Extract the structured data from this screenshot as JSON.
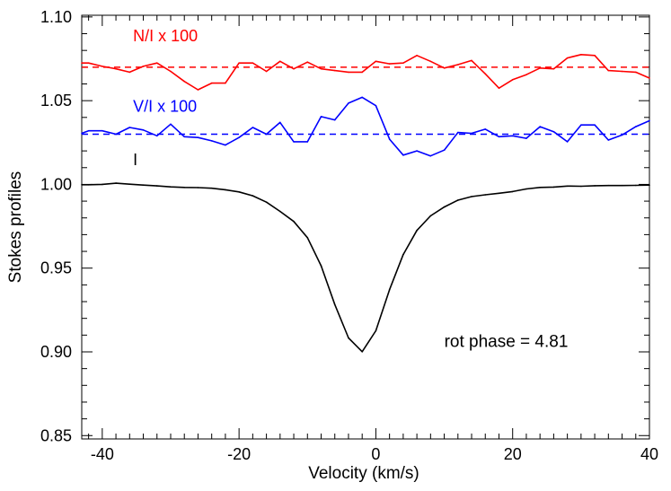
{
  "chart_data": {
    "type": "line",
    "xlabel": "Velocity (km/s)",
    "ylabel": "Stokes profiles",
    "xlim": [
      -43,
      40
    ],
    "ylim": [
      0.848,
      1.101
    ],
    "x_ticks": [
      -40,
      -20,
      0,
      20,
      40
    ],
    "x_tick_labels": [
      "-40",
      "-20",
      "0",
      "20",
      "40"
    ],
    "y_ticks": [
      0.85,
      0.9,
      0.95,
      1.0,
      1.05,
      1.1
    ],
    "y_tick_labels": [
      "0.85",
      "0.90",
      "0.95",
      "1.00",
      "1.05",
      "1.10"
    ],
    "annotation": {
      "label": "rot phase =",
      "value": "4.81",
      "x": 10,
      "y": 0.903
    },
    "series": [
      {
        "name": "N/I x 100",
        "color": "#ff0000",
        "baseline": 1.07,
        "label_pos": {
          "x": -35.5,
          "y": 1.0855
        },
        "x": [
          -43,
          -42,
          -40,
          -38,
          -36,
          -34,
          -32,
          -30,
          -28,
          -26,
          -24,
          -22,
          -20,
          -18,
          -16,
          -14,
          -12,
          -10,
          -8,
          -6,
          -4,
          -2,
          0,
          2,
          4,
          6,
          8,
          10,
          12,
          14,
          16,
          18,
          20,
          22,
          24,
          26,
          28,
          30,
          32,
          34,
          36,
          38,
          40
        ],
        "values": [
          1.0725,
          1.0725,
          1.0705,
          1.069,
          1.067,
          1.0705,
          1.0725,
          1.0675,
          1.0615,
          1.0565,
          1.0605,
          1.0605,
          1.0725,
          1.0725,
          1.0675,
          1.0735,
          1.069,
          1.073,
          1.069,
          1.068,
          1.067,
          1.067,
          1.0735,
          1.072,
          1.0725,
          1.077,
          1.0735,
          1.0695,
          1.0715,
          1.074,
          1.066,
          1.0575,
          1.0625,
          1.0655,
          1.0695,
          1.069,
          1.0755,
          1.0775,
          1.077,
          1.068,
          1.0675,
          1.067,
          1.0635
        ]
      },
      {
        "name": "V/I x 100",
        "color": "#0000ff",
        "baseline": 1.03,
        "label_pos": {
          "x": -35.5,
          "y": 1.0435
        },
        "x": [
          -43,
          -42,
          -40,
          -38,
          -36,
          -34,
          -32,
          -30,
          -28,
          -26,
          -24,
          -22,
          -20,
          -18,
          -16,
          -14,
          -12,
          -10,
          -8,
          -6,
          -4,
          -2,
          0,
          2,
          4,
          6,
          8,
          10,
          12,
          14,
          16,
          18,
          20,
          22,
          24,
          26,
          28,
          30,
          32,
          34,
          36,
          38,
          40
        ],
        "values": [
          1.0305,
          1.032,
          1.032,
          1.03,
          1.034,
          1.0325,
          1.029,
          1.036,
          1.0285,
          1.028,
          1.026,
          1.0235,
          1.028,
          1.034,
          1.03,
          1.037,
          1.0255,
          1.0255,
          1.0405,
          1.0385,
          1.0485,
          1.052,
          1.047,
          1.027,
          1.0175,
          1.02,
          1.017,
          1.0205,
          1.031,
          1.0305,
          1.033,
          1.0285,
          1.029,
          1.0275,
          1.0345,
          1.0315,
          1.0255,
          1.0355,
          1.0355,
          1.0265,
          1.0295,
          1.0345,
          1.038
        ]
      },
      {
        "name": "I",
        "color": "#000000",
        "label_pos": {
          "x": -35.5,
          "y": 1.0115
        },
        "x": [
          -43,
          -42,
          -40,
          -38,
          -36,
          -34,
          -32,
          -30,
          -28,
          -26,
          -24,
          -22,
          -20,
          -18,
          -16,
          -14,
          -12,
          -10,
          -8,
          -6,
          -4,
          -2,
          0,
          2,
          4,
          6,
          8,
          10,
          12,
          14,
          16,
          18,
          20,
          22,
          24,
          26,
          28,
          30,
          32,
          34,
          36,
          38,
          40
        ],
        "values": [
          0.9998,
          0.9998,
          1.0,
          1.0007,
          1.0001,
          0.9996,
          0.9991,
          0.9985,
          0.9982,
          0.9981,
          0.9977,
          0.9968,
          0.9955,
          0.9932,
          0.9894,
          0.9839,
          0.9779,
          0.9682,
          0.9514,
          0.9283,
          0.9083,
          0.9001,
          0.9126,
          0.9372,
          0.9581,
          0.9725,
          0.9812,
          0.9865,
          0.9906,
          0.9927,
          0.9938,
          0.9947,
          0.9957,
          0.9973,
          0.9982,
          0.9984,
          0.999,
          0.9989,
          0.9992,
          0.9993,
          0.9993,
          0.9994,
          0.9996
        ]
      }
    ]
  }
}
